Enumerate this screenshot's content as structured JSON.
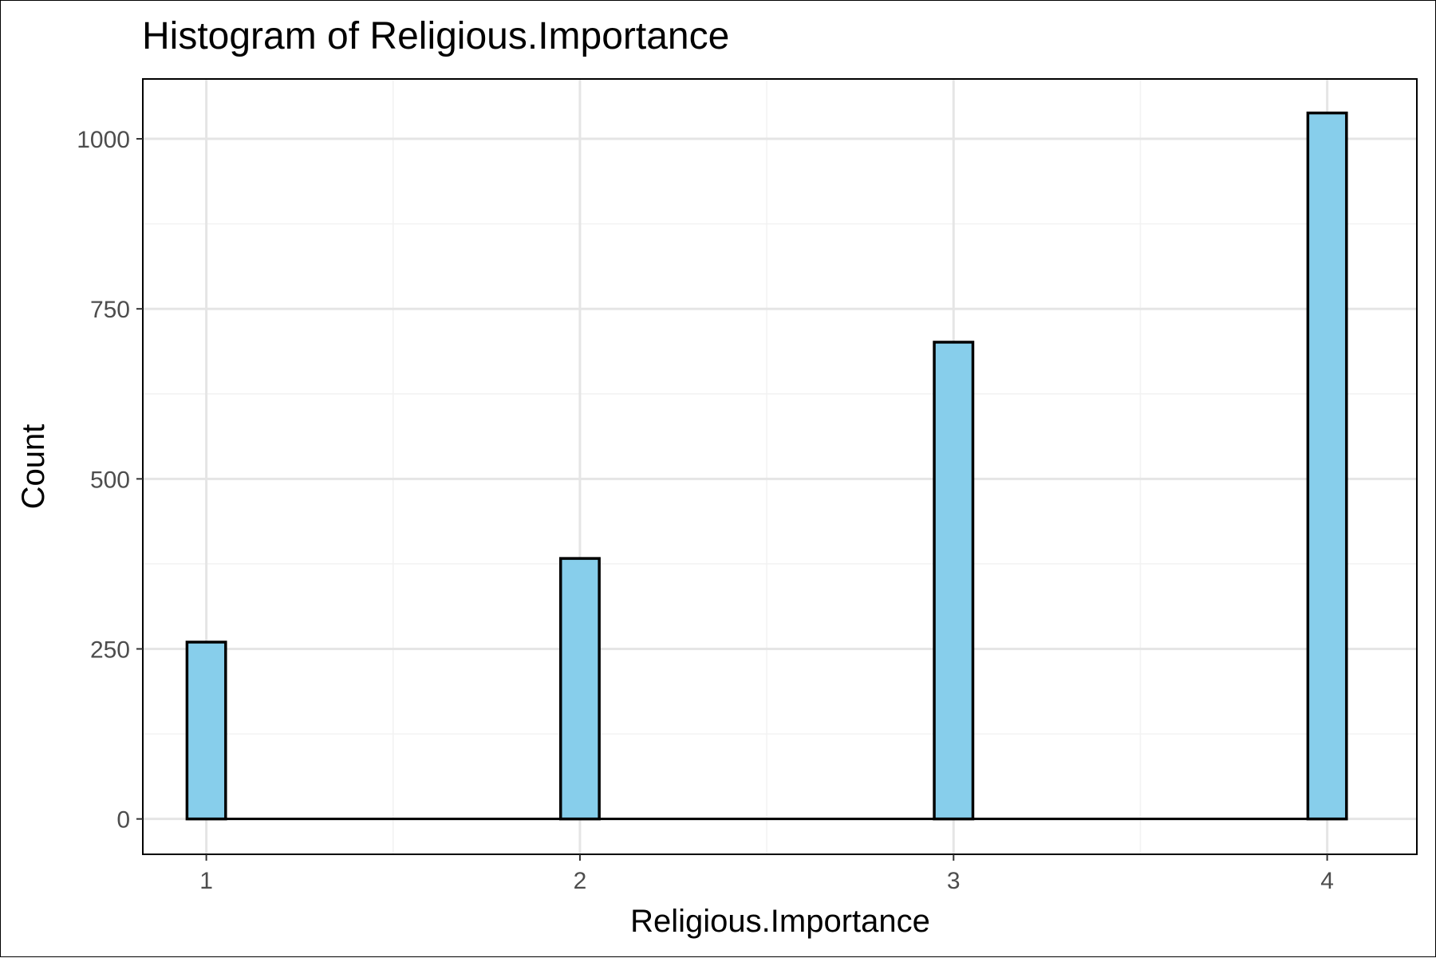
{
  "chart_data": {
    "type": "bar",
    "title": "Histogram of Religious.Importance",
    "xlabel": "Religious.Importance",
    "ylabel": "Count",
    "x": [
      1,
      2,
      3,
      4
    ],
    "values": [
      260,
      383,
      701,
      1038
    ],
    "xlim": [
      0.83,
      4.24
    ],
    "ylim": [
      -52,
      1088
    ],
    "x_ticks": [
      1,
      2,
      3,
      4
    ],
    "x_tick_labels": [
      "1",
      "2",
      "3",
      "4"
    ],
    "y_ticks": [
      0,
      250,
      500,
      750,
      1000
    ],
    "y_tick_labels": [
      "0",
      "250",
      "500",
      "750",
      "1000"
    ],
    "x_minor_grid": [
      1.5,
      2.5,
      3.5
    ],
    "y_minor_grid": [
      125,
      375,
      625,
      875
    ],
    "bin_width": 0.1034,
    "grid": true,
    "legend": "none",
    "bar_fill": "#87ceeb",
    "bar_outline": "#000000",
    "major_grid_color": "#e5e5e5",
    "minor_grid_color": "#f2f2f2"
  }
}
